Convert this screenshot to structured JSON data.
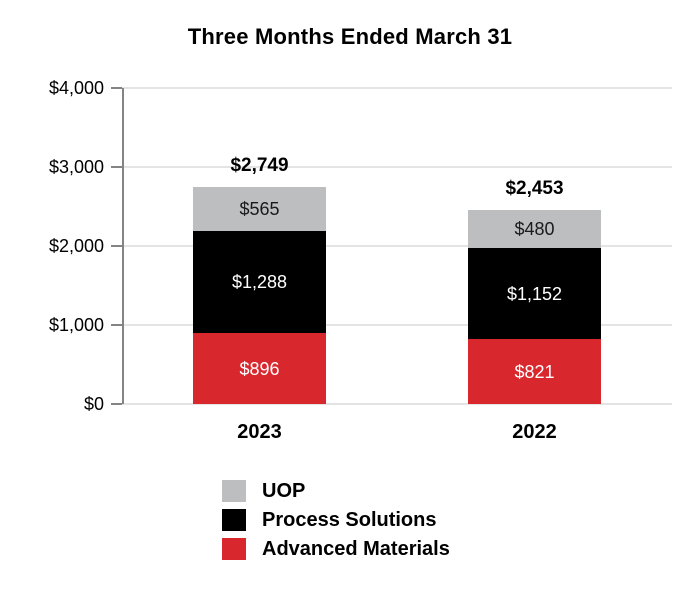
{
  "chart_data": {
    "type": "bar",
    "stacked": true,
    "title": "Three Months Ended March 31",
    "categories": [
      "2023",
      "2022"
    ],
    "series": [
      {
        "name": "Advanced Materials",
        "color": "#D8282E",
        "values": [
          896,
          821
        ],
        "labels": [
          "$896",
          "$821"
        ],
        "label_color": "#ffffff"
      },
      {
        "name": "Process Solutions",
        "color": "#000000",
        "values": [
          1288,
          1152
        ],
        "labels": [
          "$1,288",
          "$1,152"
        ],
        "label_color": "#ffffff"
      },
      {
        "name": "UOP",
        "color": "#BCBEC0",
        "values": [
          565,
          480
        ],
        "labels": [
          "$565",
          "$480"
        ],
        "label_color": "#1a1a1a"
      }
    ],
    "totals": [
      2749,
      2453
    ],
    "total_labels": [
      "$2,749",
      "$2,453"
    ],
    "y_axis": {
      "min": 0,
      "max": 4000,
      "tick_values": [
        4000,
        3000,
        2000,
        1000,
        0
      ],
      "tick_labels": [
        "$4,000",
        "$3,000",
        "$2,000",
        "$1,000",
        "$0"
      ]
    },
    "legend": [
      {
        "label": "UOP",
        "color": "#BCBEC0"
      },
      {
        "label": "Process Solutions",
        "color": "#000000"
      },
      {
        "label": "Advanced Materials",
        "color": "#D8282E"
      }
    ],
    "legend_position": "bottom",
    "grid": true,
    "grid_color": "#e4e4e4",
    "axis_color": "#848484",
    "background": "#ffffff"
  }
}
